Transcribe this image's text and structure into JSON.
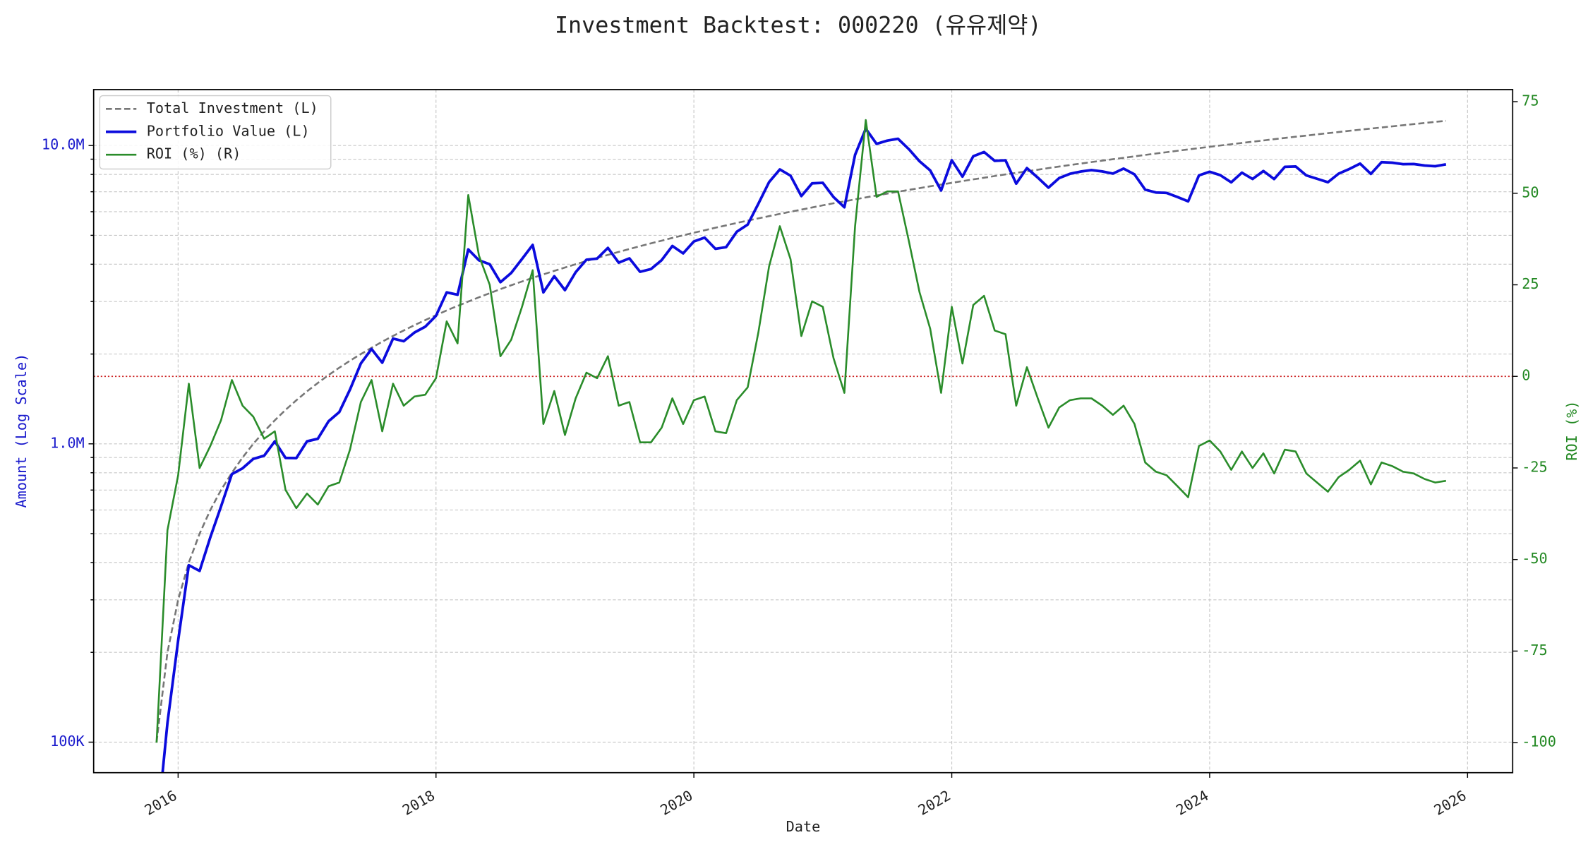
{
  "chart_data": {
    "type": "line",
    "title": "Investment Backtest: 000220 (유유제약)",
    "xlabel": "Date",
    "ylabel": "Amount (Log Scale)",
    "y2label": "ROI (%)",
    "ylog": true,
    "grid": true,
    "legend": "upper left",
    "ylabel_color": "#1a1acc",
    "y2label_color": "#228822",
    "xlim": [
      2015.345,
      2026.35
    ],
    "xticks": [
      2016,
      2018,
      2020,
      2022,
      2024,
      2026
    ],
    "ylim": [
      79000,
      15400000
    ],
    "yticks": [
      {
        "value": 100000,
        "label": "100K"
      },
      {
        "value": 1000000,
        "label": "1.0M"
      },
      {
        "value": 10000000,
        "label": "10.0M"
      }
    ],
    "yminorticks": [
      200000,
      300000,
      400000,
      500000,
      600000,
      700000,
      800000,
      900000,
      2000000,
      3000000,
      4000000,
      5000000,
      6000000,
      7000000,
      8000000,
      9000000
    ],
    "y2lim": [
      -108.2,
      78.3
    ],
    "y2ticks": [
      -100,
      -75,
      -50,
      -25,
      0,
      25,
      50,
      75
    ],
    "reference_line": {
      "axis": "y2",
      "value": 0,
      "color": "#cc2222"
    },
    "x": [
      2015.833,
      2015.917,
      2016,
      2016.083,
      2016.167,
      2016.25,
      2016.333,
      2016.417,
      2016.5,
      2016.583,
      2016.667,
      2016.75,
      2016.833,
      2016.917,
      2017,
      2017.083,
      2017.167,
      2017.25,
      2017.333,
      2017.417,
      2017.5,
      2017.583,
      2017.667,
      2017.75,
      2017.833,
      2017.917,
      2018,
      2018.083,
      2018.167,
      2018.25,
      2018.333,
      2018.417,
      2018.5,
      2018.583,
      2018.667,
      2018.75,
      2018.833,
      2018.917,
      2019,
      2019.083,
      2019.167,
      2019.25,
      2019.333,
      2019.417,
      2019.5,
      2019.583,
      2019.667,
      2019.75,
      2019.833,
      2019.917,
      2020,
      2020.083,
      2020.167,
      2020.25,
      2020.333,
      2020.417,
      2020.5,
      2020.583,
      2020.667,
      2020.75,
      2020.833,
      2020.917,
      2021,
      2021.083,
      2021.167,
      2021.25,
      2021.333,
      2021.417,
      2021.5,
      2021.583,
      2021.667,
      2021.75,
      2021.833,
      2021.917,
      2022,
      2022.083,
      2022.167,
      2022.25,
      2022.333,
      2022.417,
      2022.5,
      2022.583,
      2022.667,
      2022.75,
      2022.833,
      2022.917,
      2023,
      2023.083,
      2023.167,
      2023.25,
      2023.333,
      2023.417,
      2023.5,
      2023.583,
      2023.667,
      2023.75,
      2023.833,
      2023.917,
      2024,
      2024.083,
      2024.167,
      2024.25,
      2024.333,
      2024.417,
      2024.5,
      2024.583,
      2024.667,
      2024.75,
      2024.833,
      2024.917,
      2025,
      2025.083,
      2025.167,
      2025.25,
      2025.333,
      2025.417,
      2025.5,
      2025.583,
      2025.667,
      2025.75,
      2025.833
    ],
    "series": [
      {
        "name": "Total Investment (L)",
        "color": "#777777",
        "dashed": true,
        "axis": "y",
        "values": [
          100000,
          200000,
          300000,
          400000,
          500000,
          600000,
          700000,
          800000,
          900000,
          1000000,
          1100000,
          1200000,
          1300000,
          1400000,
          1500000,
          1600000,
          1700000,
          1800000,
          1900000,
          2000000,
          2100000,
          2200000,
          2300000,
          2400000,
          2500000,
          2600000,
          2700000,
          2800000,
          2900000,
          3000000,
          3100000,
          3200000,
          3300000,
          3400000,
          3500000,
          3600000,
          3700000,
          3800000,
          3900000,
          4000000,
          4100000,
          4200000,
          4300000,
          4400000,
          4500000,
          4600000,
          4700000,
          4800000,
          4900000,
          5000000,
          5100000,
          5200000,
          5300000,
          5400000,
          5500000,
          5600000,
          5700000,
          5800000,
          5900000,
          6000000,
          6100000,
          6200000,
          6300000,
          6400000,
          6500000,
          6600000,
          6700000,
          6800000,
          6900000,
          7000000,
          7100000,
          7200000,
          7300000,
          7400000,
          7500000,
          7600000,
          7700000,
          7800000,
          7900000,
          8000000,
          8100000,
          8200000,
          8300000,
          8400000,
          8500000,
          8600000,
          8700000,
          8800000,
          8900000,
          9000000,
          9100000,
          9200000,
          9300000,
          9400000,
          9500000,
          9600000,
          9700000,
          9800000,
          9900000,
          10000000,
          10100000,
          10200000,
          10300000,
          10400000,
          10500000,
          10600000,
          10700000,
          10800000,
          10900000,
          11000000,
          11100000,
          11200000,
          11300000,
          11400000,
          11500000,
          11600000,
          11700000,
          11800000,
          11900000,
          12000000,
          12100000
        ]
      },
      {
        "name": "Portfolio Value (L)",
        "color": "#0b0bdd",
        "width": 2.6,
        "axis": "y",
        "values": [
          0,
          116000,
          219000,
          392000,
          375000,
          486000,
          616000,
          792000,
          828000,
          890000,
          913000,
          1020000,
          897000,
          896000,
          1020000,
          1040000,
          1190000,
          1278000,
          1520000,
          1860000,
          2079000,
          1870000,
          2254000,
          2208000,
          2362500,
          2470000,
          2686500,
          3220000,
          3161000,
          4485000,
          4123000,
          4000000,
          3481500,
          3740000,
          4165000,
          4644000,
          3219000,
          3648000,
          3276000,
          3760000,
          4141000,
          4179000,
          4536500,
          4048000,
          4185000,
          3772000,
          3854000,
          4128000,
          4606000,
          4350000,
          4768500,
          4914000,
          4505000,
          4563000,
          5142500,
          5432000,
          6384000,
          7540000,
          8319000,
          7920000,
          6771000,
          7471000,
          7497000,
          6720000,
          6207500,
          9306000,
          11390000,
          10132000,
          10384500,
          10535000,
          9727000,
          8856000,
          8249000,
          7067000,
          8925000,
          7866000,
          9201500,
          9516000,
          8887500,
          8920000,
          7452000,
          8405000,
          7802000,
          7224000,
          7777500,
          8041000,
          8178000,
          8272000,
          8188000,
          8055000,
          8372000,
          8004000,
          7114500,
          6956000,
          6935000,
          6720000,
          6499000,
          7938000,
          8167500,
          7950000,
          7524500,
          8109000,
          7725000,
          8216000,
          7717500,
          8480000,
          8506500,
          7938000,
          7739000,
          7535000,
          8047500,
          8344000,
          8701000,
          8037000,
          8797500,
          8758000,
          8658000,
          8673000,
          8568000,
          8520000,
          8651500
        ]
      },
      {
        "name": "ROI (%) (R)",
        "color": "#2a8c2a",
        "axis": "y2",
        "values": [
          -100,
          -42,
          -27,
          -2,
          -25,
          -19,
          -12,
          -1,
          -8,
          -11,
          -17,
          -15,
          -31,
          -36,
          -32,
          -35,
          -30,
          -29,
          -20,
          -7,
          -1,
          -15,
          -2,
          -8,
          -5.5,
          -5,
          -0.5,
          15,
          9,
          49.5,
          33,
          25,
          5.5,
          10,
          19,
          29,
          -13,
          -4,
          -16,
          -6,
          1,
          -0.5,
          5.5,
          -8,
          -7,
          -18,
          -18,
          -14,
          -6,
          -13,
          -6.5,
          -5.5,
          -15,
          -15.5,
          -6.5,
          -3,
          12,
          30,
          41,
          32,
          11,
          20.5,
          19,
          5,
          -4.5,
          41,
          70,
          49,
          50.5,
          50.5,
          37,
          23,
          13,
          -4.5,
          19,
          3.5,
          19.5,
          22,
          12.5,
          11.5,
          -8,
          2.5,
          -6,
          -14,
          -8.5,
          -6.5,
          -6,
          -6,
          -8,
          -10.5,
          -8,
          -13,
          -23.5,
          -26,
          -27,
          -30,
          -33,
          -19,
          -17.5,
          -20.5,
          -25.5,
          -20.5,
          -25,
          -21,
          -26.5,
          -20,
          -20.5,
          -26.5,
          -29,
          -31.5,
          -27.5,
          -25.5,
          -23,
          -29.5,
          -23.5,
          -24.5,
          -26,
          -26.5,
          -28,
          -29,
          -28.5
        ]
      }
    ]
  }
}
